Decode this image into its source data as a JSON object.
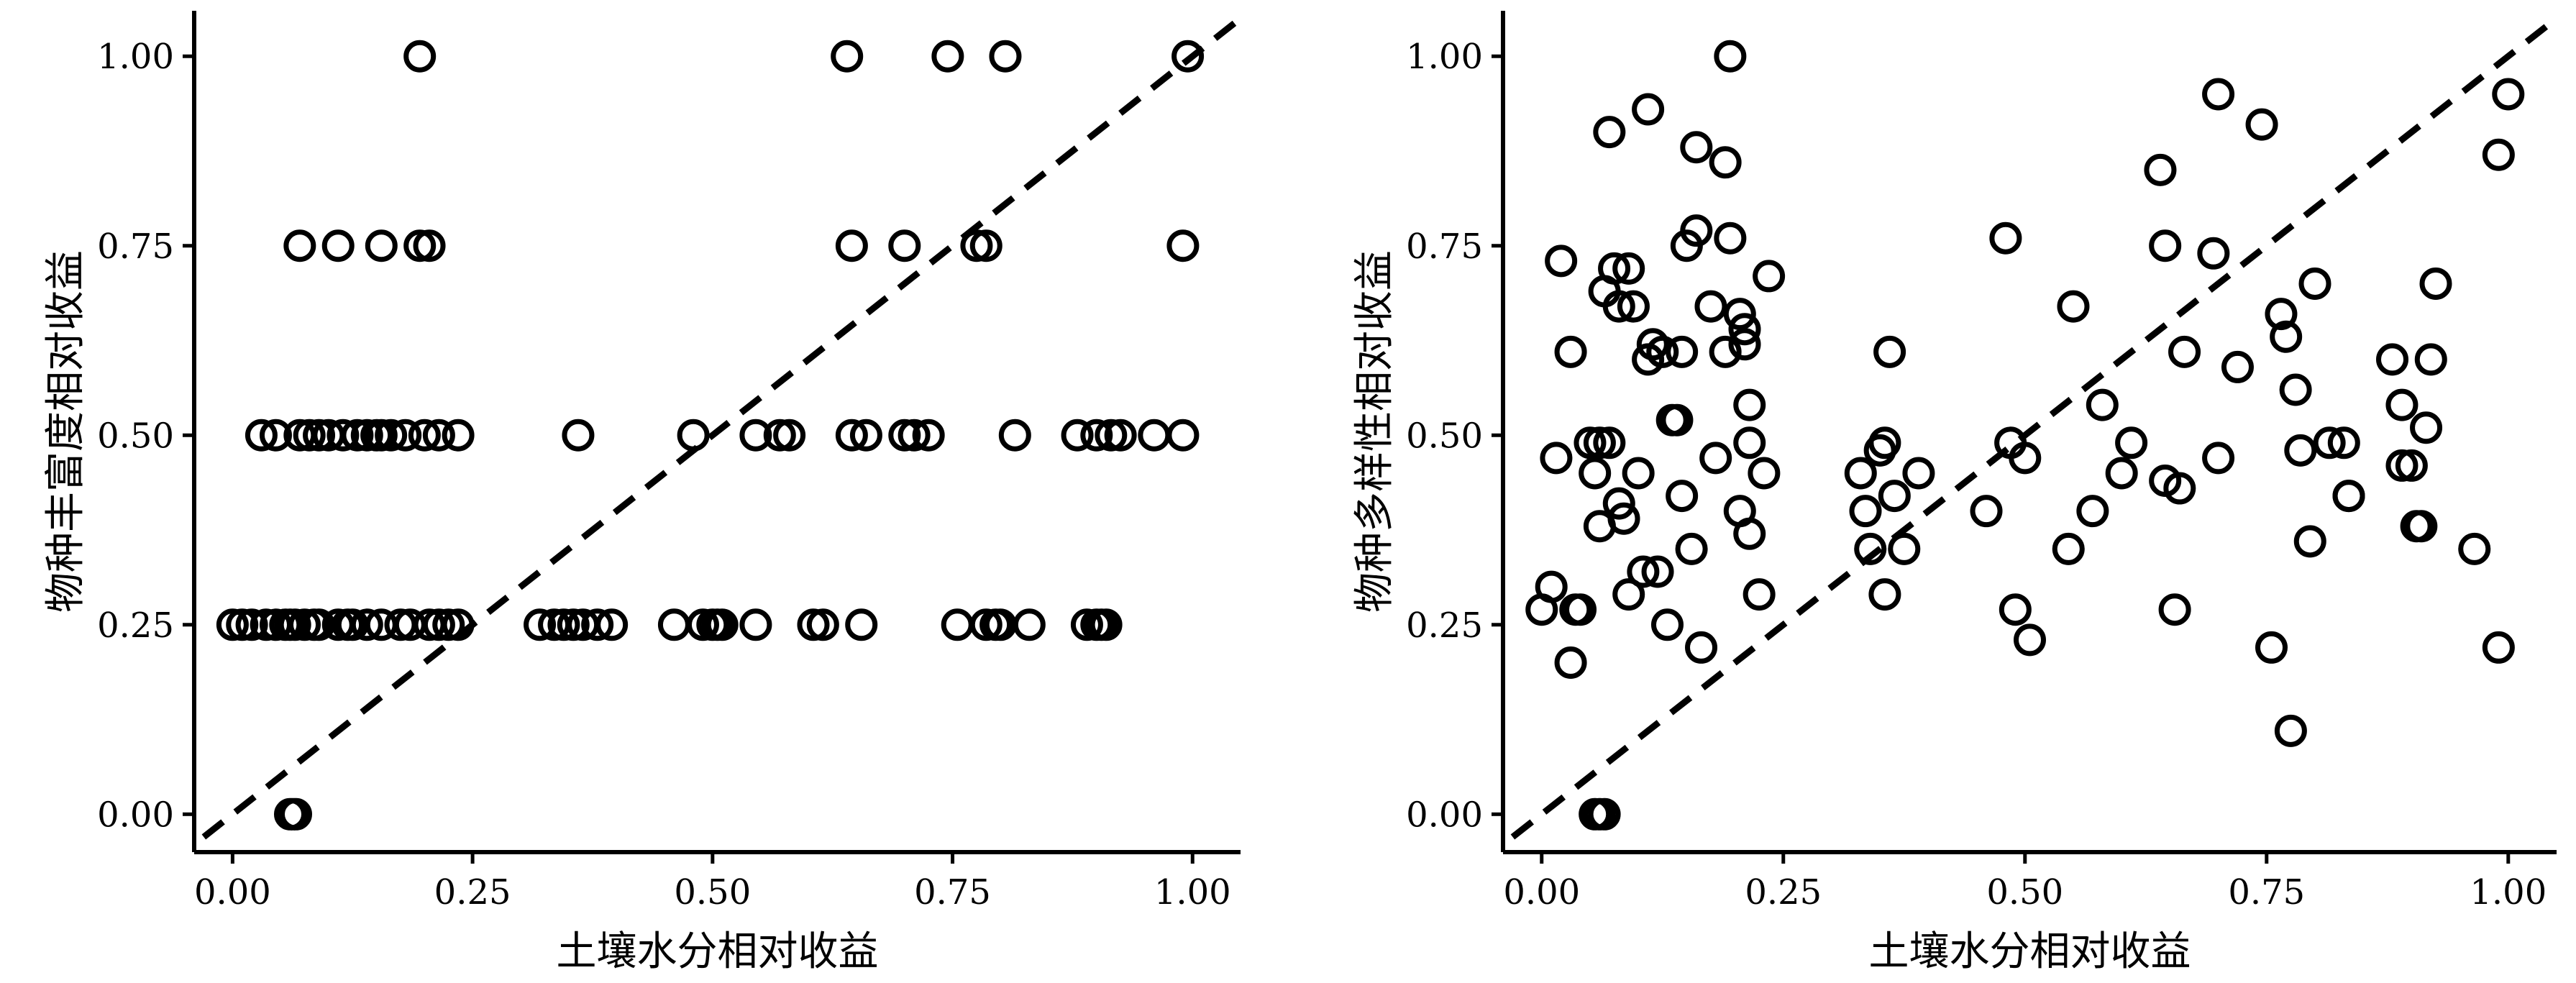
{
  "chart_data": [
    {
      "type": "scatter",
      "xlabel": "土壤水分相对收益",
      "ylabel": "物种丰富度相对收益",
      "xlim": [
        -0.04,
        1.05
      ],
      "ylim": [
        -0.05,
        1.06
      ],
      "xticks": [
        0.0,
        0.25,
        0.5,
        0.75,
        1.0
      ],
      "yticks": [
        0.0,
        0.25,
        0.5,
        0.75,
        1.0
      ],
      "tick_labels_x": [
        "0.00",
        "0.25",
        "0.50",
        "0.75",
        "1.00"
      ],
      "tick_labels_y": [
        "0.00",
        "0.25",
        "0.50",
        "0.75",
        "1.00"
      ],
      "reference_line": "y = x (dashed)",
      "grid": false,
      "legend": "none",
      "marker": "open circle",
      "color": "#000000",
      "points": [
        [
          0.06,
          0.0
        ],
        [
          0.063,
          0.0
        ],
        [
          0.066,
          0.0
        ],
        [
          0.0,
          0.25
        ],
        [
          0.01,
          0.25
        ],
        [
          0.02,
          0.25
        ],
        [
          0.035,
          0.25
        ],
        [
          0.045,
          0.25
        ],
        [
          0.055,
          0.25
        ],
        [
          0.06,
          0.25
        ],
        [
          0.065,
          0.25
        ],
        [
          0.075,
          0.25
        ],
        [
          0.085,
          0.25
        ],
        [
          0.09,
          0.25
        ],
        [
          0.11,
          0.25
        ],
        [
          0.12,
          0.25
        ],
        [
          0.125,
          0.25
        ],
        [
          0.14,
          0.25
        ],
        [
          0.155,
          0.25
        ],
        [
          0.175,
          0.25
        ],
        [
          0.185,
          0.25
        ],
        [
          0.205,
          0.25
        ],
        [
          0.215,
          0.25
        ],
        [
          0.225,
          0.25
        ],
        [
          0.235,
          0.25
        ],
        [
          0.32,
          0.25
        ],
        [
          0.335,
          0.25
        ],
        [
          0.345,
          0.25
        ],
        [
          0.355,
          0.25
        ],
        [
          0.365,
          0.25
        ],
        [
          0.38,
          0.25
        ],
        [
          0.395,
          0.25
        ],
        [
          0.46,
          0.25
        ],
        [
          0.49,
          0.25
        ],
        [
          0.5,
          0.25
        ],
        [
          0.505,
          0.25
        ],
        [
          0.51,
          0.25
        ],
        [
          0.545,
          0.25
        ],
        [
          0.605,
          0.25
        ],
        [
          0.615,
          0.25
        ],
        [
          0.655,
          0.25
        ],
        [
          0.755,
          0.25
        ],
        [
          0.785,
          0.25
        ],
        [
          0.795,
          0.25
        ],
        [
          0.8,
          0.25
        ],
        [
          0.83,
          0.25
        ],
        [
          0.89,
          0.25
        ],
        [
          0.9,
          0.25
        ],
        [
          0.905,
          0.25
        ],
        [
          0.91,
          0.25
        ],
        [
          0.03,
          0.5
        ],
        [
          0.045,
          0.5
        ],
        [
          0.07,
          0.5
        ],
        [
          0.08,
          0.5
        ],
        [
          0.09,
          0.5
        ],
        [
          0.1,
          0.5
        ],
        [
          0.115,
          0.5
        ],
        [
          0.13,
          0.5
        ],
        [
          0.14,
          0.5
        ],
        [
          0.15,
          0.5
        ],
        [
          0.155,
          0.5
        ],
        [
          0.165,
          0.5
        ],
        [
          0.18,
          0.5
        ],
        [
          0.2,
          0.5
        ],
        [
          0.215,
          0.5
        ],
        [
          0.235,
          0.5
        ],
        [
          0.36,
          0.5
        ],
        [
          0.48,
          0.5
        ],
        [
          0.545,
          0.5
        ],
        [
          0.57,
          0.5
        ],
        [
          0.58,
          0.5
        ],
        [
          0.645,
          0.5
        ],
        [
          0.66,
          0.5
        ],
        [
          0.7,
          0.5
        ],
        [
          0.71,
          0.5
        ],
        [
          0.725,
          0.5
        ],
        [
          0.815,
          0.5
        ],
        [
          0.88,
          0.5
        ],
        [
          0.9,
          0.5
        ],
        [
          0.915,
          0.5
        ],
        [
          0.925,
          0.5
        ],
        [
          0.96,
          0.5
        ],
        [
          0.99,
          0.5
        ],
        [
          0.07,
          0.75
        ],
        [
          0.11,
          0.75
        ],
        [
          0.155,
          0.75
        ],
        [
          0.195,
          0.75
        ],
        [
          0.205,
          0.75
        ],
        [
          0.645,
          0.75
        ],
        [
          0.7,
          0.75
        ],
        [
          0.775,
          0.75
        ],
        [
          0.785,
          0.75
        ],
        [
          0.99,
          0.75
        ],
        [
          0.195,
          1.0
        ],
        [
          0.64,
          1.0
        ],
        [
          0.745,
          1.0
        ],
        [
          0.805,
          1.0
        ],
        [
          0.995,
          1.0
        ]
      ]
    },
    {
      "type": "scatter",
      "xlabel": "土壤水分相对收益",
      "ylabel": "物种多样性相对收益",
      "xlim": [
        -0.04,
        1.05
      ],
      "ylim": [
        -0.05,
        1.06
      ],
      "xticks": [
        0.0,
        0.25,
        0.5,
        0.75,
        1.0
      ],
      "yticks": [
        0.0,
        0.25,
        0.5,
        0.75,
        1.0
      ],
      "tick_labels_x": [
        "0.00",
        "0.25",
        "0.50",
        "0.75",
        "1.00"
      ],
      "tick_labels_y": [
        "0.00",
        "0.25",
        "0.50",
        "0.75",
        "1.00"
      ],
      "reference_line": "y = x (dashed)",
      "grid": false,
      "legend": "none",
      "marker": "open circle",
      "color": "#000000",
      "points": [
        [
          0.055,
          0.0
        ],
        [
          0.06,
          0.0
        ],
        [
          0.065,
          0.0
        ],
        [
          0.0,
          0.27
        ],
        [
          0.01,
          0.3
        ],
        [
          0.03,
          0.2
        ],
        [
          0.035,
          0.27
        ],
        [
          0.04,
          0.27
        ],
        [
          0.015,
          0.47
        ],
        [
          0.02,
          0.73
        ],
        [
          0.03,
          0.61
        ],
        [
          0.05,
          0.49
        ],
        [
          0.055,
          0.45
        ],
        [
          0.06,
          0.38
        ],
        [
          0.06,
          0.49
        ],
        [
          0.065,
          0.69
        ],
        [
          0.07,
          0.49
        ],
        [
          0.07,
          0.9
        ],
        [
          0.075,
          0.72
        ],
        [
          0.08,
          0.41
        ],
        [
          0.08,
          0.67
        ],
        [
          0.085,
          0.39
        ],
        [
          0.09,
          0.72
        ],
        [
          0.09,
          0.29
        ],
        [
          0.095,
          0.67
        ],
        [
          0.1,
          0.45
        ],
        [
          0.105,
          0.32
        ],
        [
          0.11,
          0.6
        ],
        [
          0.11,
          0.93
        ],
        [
          0.115,
          0.62
        ],
        [
          0.12,
          0.32
        ],
        [
          0.125,
          0.61
        ],
        [
          0.13,
          0.25
        ],
        [
          0.135,
          0.52
        ],
        [
          0.14,
          0.52
        ],
        [
          0.145,
          0.42
        ],
        [
          0.145,
          0.61
        ],
        [
          0.15,
          0.75
        ],
        [
          0.155,
          0.35
        ],
        [
          0.16,
          0.77
        ],
        [
          0.16,
          0.88
        ],
        [
          0.165,
          0.22
        ],
        [
          0.175,
          0.67
        ],
        [
          0.18,
          0.47
        ],
        [
          0.19,
          0.61
        ],
        [
          0.19,
          0.86
        ],
        [
          0.195,
          0.76
        ],
        [
          0.195,
          1.0
        ],
        [
          0.205,
          0.66
        ],
        [
          0.205,
          0.4
        ],
        [
          0.21,
          0.62
        ],
        [
          0.21,
          0.64
        ],
        [
          0.215,
          0.49
        ],
        [
          0.215,
          0.37
        ],
        [
          0.215,
          0.54
        ],
        [
          0.225,
          0.29
        ],
        [
          0.23,
          0.45
        ],
        [
          0.235,
          0.71
        ],
        [
          0.33,
          0.45
        ],
        [
          0.335,
          0.4
        ],
        [
          0.34,
          0.35
        ],
        [
          0.35,
          0.48
        ],
        [
          0.355,
          0.49
        ],
        [
          0.355,
          0.29
        ],
        [
          0.36,
          0.61
        ],
        [
          0.365,
          0.42
        ],
        [
          0.375,
          0.35
        ],
        [
          0.39,
          0.45
        ],
        [
          0.46,
          0.4
        ],
        [
          0.48,
          0.76
        ],
        [
          0.485,
          0.49
        ],
        [
          0.49,
          0.27
        ],
        [
          0.5,
          0.47
        ],
        [
          0.505,
          0.23
        ],
        [
          0.545,
          0.35
        ],
        [
          0.55,
          0.67
        ],
        [
          0.57,
          0.4
        ],
        [
          0.58,
          0.54
        ],
        [
          0.6,
          0.45
        ],
        [
          0.61,
          0.49
        ],
        [
          0.64,
          0.85
        ],
        [
          0.645,
          0.75
        ],
        [
          0.645,
          0.44
        ],
        [
          0.655,
          0.27
        ],
        [
          0.66,
          0.43
        ],
        [
          0.665,
          0.61
        ],
        [
          0.695,
          0.74
        ],
        [
          0.7,
          0.47
        ],
        [
          0.7,
          0.95
        ],
        [
          0.72,
          0.59
        ],
        [
          0.745,
          0.91
        ],
        [
          0.755,
          0.22
        ],
        [
          0.765,
          0.66
        ],
        [
          0.77,
          0.63
        ],
        [
          0.775,
          0.11
        ],
        [
          0.78,
          0.56
        ],
        [
          0.785,
          0.48
        ],
        [
          0.795,
          0.36
        ],
        [
          0.8,
          0.7
        ],
        [
          0.815,
          0.49
        ],
        [
          0.83,
          0.49
        ],
        [
          0.835,
          0.42
        ],
        [
          0.835,
          0.42
        ],
        [
          0.88,
          0.6
        ],
        [
          0.89,
          0.46
        ],
        [
          0.89,
          0.54
        ],
        [
          0.9,
          0.46
        ],
        [
          0.905,
          0.38
        ],
        [
          0.91,
          0.38
        ],
        [
          0.915,
          0.51
        ],
        [
          0.92,
          0.6
        ],
        [
          0.925,
          0.7
        ],
        [
          0.965,
          0.35
        ],
        [
          0.99,
          0.87
        ],
        [
          0.99,
          0.22
        ],
        [
          1.0,
          0.95
        ]
      ]
    }
  ]
}
